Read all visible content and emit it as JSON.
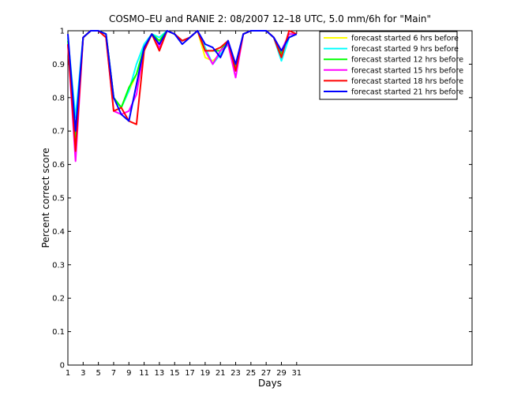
{
  "chart_data": {
    "type": "line",
    "title": "COSMO–EU and RANIE 2: 08/2007 12–18 UTC, 5.0 mm/6h for \"Main\"",
    "xlabel": "Days",
    "ylabel": "Percent correct score",
    "xlim": [
      1,
      54
    ],
    "ylim": [
      0,
      1
    ],
    "xticks": [
      1,
      3,
      5,
      7,
      9,
      11,
      13,
      15,
      17,
      19,
      21,
      23,
      25,
      27,
      29,
      31
    ],
    "yticks": [
      0,
      0.1,
      0.2,
      0.3,
      0.4,
      0.5,
      0.6,
      0.7,
      0.8,
      0.9,
      1
    ],
    "ytick_labels": [
      "0",
      "0.1",
      "0.2",
      "0.3",
      "0.4",
      "0.5",
      "0.6",
      "0.7",
      "0.8",
      "0.9",
      "1"
    ],
    "grid": false,
    "legend_position": "top-right",
    "x": [
      1,
      2,
      3,
      4,
      5,
      6,
      7,
      8,
      9,
      10,
      11,
      12,
      13,
      14,
      15,
      16,
      17,
      18,
      19,
      20,
      21,
      22,
      23,
      24,
      25,
      26,
      27,
      28,
      29,
      30,
      31
    ],
    "series": [
      {
        "name": "forecast started 6 hrs before",
        "color": "#ffff00",
        "values": [
          0.98,
          0.7,
          0.98,
          1.0,
          1.0,
          0.99,
          0.8,
          0.77,
          0.82,
          0.87,
          0.95,
          0.99,
          0.97,
          1.0,
          0.99,
          0.97,
          0.98,
          1.0,
          0.92,
          0.91,
          0.93,
          0.96,
          0.88,
          0.99,
          1.0,
          1.0,
          1.0,
          0.98,
          0.94,
          0.98,
          0.99
        ]
      },
      {
        "name": "forecast started 9 hrs before",
        "color": "#00ffff",
        "values": [
          0.98,
          0.74,
          0.98,
          1.0,
          1.0,
          0.99,
          0.8,
          0.77,
          0.82,
          0.9,
          0.96,
          0.99,
          0.98,
          1.0,
          0.99,
          0.97,
          0.98,
          1.0,
          0.95,
          0.9,
          0.93,
          0.96,
          0.88,
          0.99,
          1.0,
          1.0,
          1.0,
          0.98,
          0.91,
          0.98,
          0.99
        ]
      },
      {
        "name": "forecast started 12 hrs before",
        "color": "#00ff00",
        "values": [
          0.97,
          0.67,
          0.98,
          1.0,
          1.0,
          0.99,
          0.8,
          0.77,
          0.83,
          0.87,
          0.95,
          0.99,
          0.97,
          1.0,
          0.99,
          0.97,
          0.98,
          1.0,
          0.94,
          0.94,
          0.94,
          0.97,
          0.89,
          0.99,
          1.0,
          1.0,
          1.0,
          0.98,
          0.93,
          0.99,
          0.99
        ]
      },
      {
        "name": "forecast started 15 hrs before",
        "color": "#ff00ff",
        "values": [
          0.96,
          0.61,
          0.98,
          1.0,
          1.0,
          0.98,
          0.76,
          0.75,
          0.76,
          0.81,
          0.95,
          0.99,
          0.95,
          1.0,
          0.99,
          0.97,
          0.98,
          1.0,
          0.94,
          0.9,
          0.94,
          0.96,
          0.86,
          0.99,
          1.0,
          1.0,
          1.0,
          0.98,
          0.94,
          0.99,
          0.99
        ]
      },
      {
        "name": "forecast started 18 hrs before",
        "color": "#ff0000",
        "values": [
          0.96,
          0.64,
          0.98,
          1.0,
          1.0,
          0.98,
          0.76,
          0.77,
          0.73,
          0.72,
          0.94,
          0.99,
          0.94,
          1.0,
          0.99,
          0.97,
          0.98,
          1.0,
          0.94,
          0.94,
          0.95,
          0.97,
          0.88,
          0.99,
          1.0,
          1.0,
          1.0,
          0.98,
          0.92,
          1.0,
          0.99
        ]
      },
      {
        "name": "forecast started 21 hrs before",
        "color": "#0000ff",
        "values": [
          0.99,
          0.7,
          0.98,
          1.0,
          1.0,
          0.99,
          0.8,
          0.75,
          0.73,
          0.84,
          0.95,
          0.99,
          0.96,
          1.0,
          0.99,
          0.96,
          0.98,
          1.0,
          0.96,
          0.95,
          0.92,
          0.97,
          0.9,
          0.99,
          1.0,
          1.0,
          1.0,
          0.98,
          0.94,
          0.98,
          0.99
        ]
      }
    ]
  }
}
